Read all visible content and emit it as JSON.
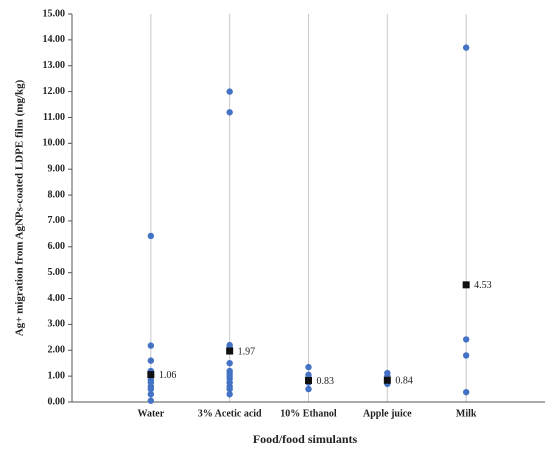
{
  "chart_data": {
    "type": "strip",
    "y_label": "Ag+ migration from AgNPs-coated LDPE film (mg/kg)",
    "x_label": "Food/food simulants",
    "categories": [
      "Water",
      "3% Acetic acid",
      "10% Ethanol",
      "Apple juice",
      "Milk"
    ],
    "points": [
      [
        6.42,
        2.18,
        1.6,
        1.2,
        1.1,
        1.05,
        1.0,
        0.85,
        0.75,
        0.6,
        0.5,
        0.3,
        0.05
      ],
      [
        12.0,
        11.2,
        2.2,
        2.1,
        1.5,
        1.2,
        1.1,
        1.0,
        0.9,
        0.75,
        0.6,
        0.5,
        0.3
      ],
      [
        1.35,
        1.05,
        0.95,
        0.85,
        0.75,
        0.5
      ],
      [
        1.12,
        1.0,
        0.9,
        0.8,
        0.7
      ],
      [
        13.7,
        2.42,
        1.8,
        0.38
      ]
    ],
    "means": [
      1.06,
      1.97,
      0.83,
      0.84,
      4.53
    ],
    "point_color": "#4472c4",
    "mean_color": "#111111",
    "category_grid": true,
    "ylim": [
      0,
      15
    ],
    "yticks": [
      {
        "value": 0,
        "label": "0.00"
      },
      {
        "value": 1,
        "label": "1.00"
      },
      {
        "value": 2,
        "label": "2.00"
      },
      {
        "value": 3,
        "label": "3.00"
      },
      {
        "value": 4,
        "label": "4.00"
      },
      {
        "value": 5,
        "label": "5.00"
      },
      {
        "value": 6,
        "label": "6.00"
      },
      {
        "value": 7,
        "label": "7.00"
      },
      {
        "value": 8,
        "label": "8.00"
      },
      {
        "value": 9,
        "label": "9.00"
      },
      {
        "value": 10,
        "label": "10.00"
      },
      {
        "value": 11,
        "label": "11.00"
      },
      {
        "value": 12,
        "label": "12.00"
      },
      {
        "value": 13,
        "label": "13.00"
      },
      {
        "value": 14,
        "label": "14.00"
      },
      {
        "value": 15,
        "label": "15.00"
      }
    ]
  }
}
